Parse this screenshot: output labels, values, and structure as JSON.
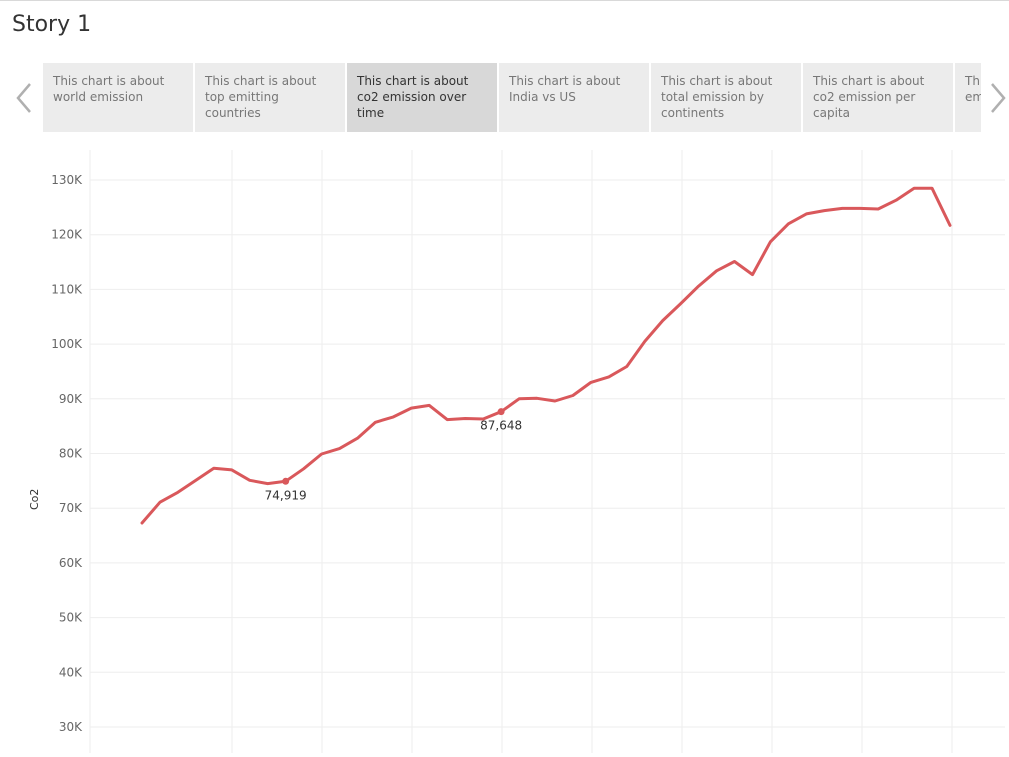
{
  "story": {
    "title": "Story 1"
  },
  "nav": {
    "prev_icon": "chevron-left-icon",
    "next_icon": "chevron-right-icon"
  },
  "tabs": [
    {
      "label": "This chart is about world emission",
      "active": false
    },
    {
      "label": "This chart is about top emitting countries",
      "active": false
    },
    {
      "label": "This chart is about co2 emission over time",
      "active": true
    },
    {
      "label": "This chart is about India vs US",
      "active": false
    },
    {
      "label": "This chart is about total emission by continents",
      "active": false
    },
    {
      "label": "This chart is  about co2 emission per capita",
      "active": false
    },
    {
      "label": "This chart is about emission factors",
      "active": false
    }
  ],
  "chart_data": {
    "type": "line",
    "title": "",
    "xlabel": "",
    "ylabel": "Co2",
    "ylim": [
      30000,
      130000
    ],
    "y_ticks": [
      {
        "value": 30000,
        "label": "30K"
      },
      {
        "value": 40000,
        "label": "40K"
      },
      {
        "value": 50000,
        "label": "50K"
      },
      {
        "value": 60000,
        "label": "60K"
      },
      {
        "value": 70000,
        "label": "70K"
      },
      {
        "value": 80000,
        "label": "80K"
      },
      {
        "value": 90000,
        "label": "90K"
      },
      {
        "value": 100000,
        "label": "100K"
      },
      {
        "value": 110000,
        "label": "110K"
      },
      {
        "value": 120000,
        "label": "120K"
      },
      {
        "value": 130000,
        "label": "130K"
      }
    ],
    "grid": true,
    "line_color": "#d9585b",
    "values": [
      67300,
      71100,
      72900,
      75100,
      77300,
      77000,
      75100,
      74500,
      74919,
      77200,
      79900,
      80900,
      82800,
      85700,
      86700,
      88300,
      88800,
      86200,
      86400,
      86300,
      87648,
      90000,
      90100,
      89600,
      90600,
      93000,
      94000,
      95900,
      100500,
      104300,
      107400,
      110600,
      113400,
      115100,
      112700,
      118700,
      122000,
      123800,
      124400,
      124800,
      124800,
      124700,
      126300,
      128500,
      128500,
      121700
    ],
    "annotations": [
      {
        "index": 8,
        "label": "74,919"
      },
      {
        "index": 20,
        "label": "87,648"
      }
    ]
  }
}
